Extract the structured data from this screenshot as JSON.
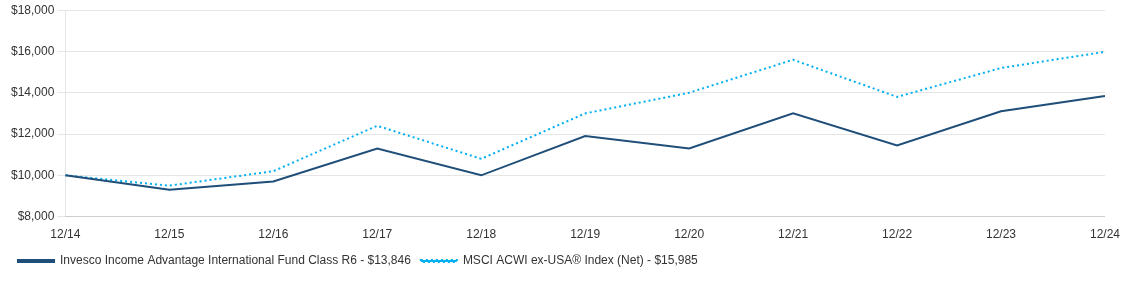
{
  "chart_data": {
    "type": "line",
    "categories": [
      "12/14",
      "12/15",
      "12/16",
      "12/17",
      "12/18",
      "12/19",
      "12/20",
      "12/21",
      "12/22",
      "12/23",
      "12/24"
    ],
    "series": [
      {
        "name": "Invesco Income Advantage International Fund Class R6 - $13,846",
        "color": "#1F4E79",
        "line_style": "solid",
        "values": [
          10000,
          9300,
          9700,
          11300,
          10000,
          11900,
          11300,
          13000,
          11450,
          13100,
          13846
        ]
      },
      {
        "name": "MSCI ACWI ex-USA® Index (Net) - $15,985",
        "color": "#00B0F0",
        "line_style": "dotted",
        "values": [
          10000,
          9500,
          10200,
          12400,
          10800,
          13000,
          14000,
          15600,
          13800,
          15200,
          15985
        ]
      }
    ],
    "ylim": [
      8000,
      18000
    ],
    "yticks": [
      {
        "value": 8000,
        "label": "$8,000"
      },
      {
        "value": 10000,
        "label": "$10,000"
      },
      {
        "value": 12000,
        "label": "$12,000"
      },
      {
        "value": 14000,
        "label": "$14,000"
      },
      {
        "value": 16000,
        "label": "$16,000"
      },
      {
        "value": 18000,
        "label": "$18,000"
      }
    ],
    "grid": true,
    "legend": "lower left"
  }
}
